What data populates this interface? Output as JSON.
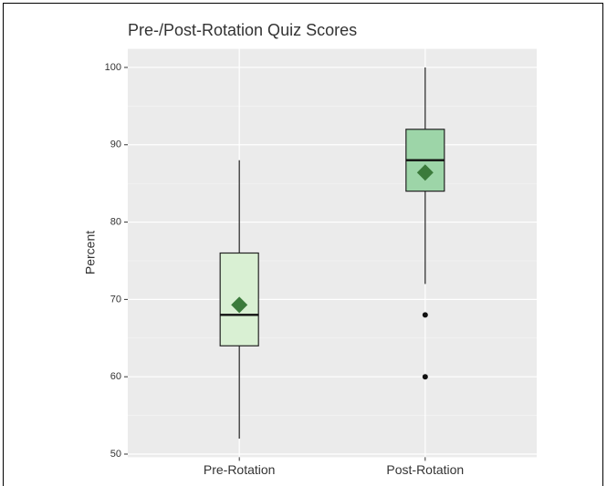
{
  "chart_data": {
    "type": "box",
    "title": "Pre-/Post-Rotation Quiz Scores",
    "y_label": "Percent",
    "categories": [
      "Pre-Rotation",
      "Post-Rotation"
    ],
    "boxes": [
      {
        "min": 52,
        "q1": 64,
        "median": 68,
        "q3": 76,
        "max": 88,
        "mean": 69.3,
        "outliers": [],
        "color": "#d9f0d3"
      },
      {
        "min": 72,
        "q1": 84,
        "median": 88,
        "q3": 92,
        "max": 100,
        "mean": 86.4,
        "outliers": [
          68,
          60
        ],
        "color": "#9dd5a8"
      }
    ],
    "mean_color": "#3b7a3b",
    "ylim": [
      49.6,
      102.4
    ],
    "yticks": [
      50,
      60,
      70,
      80,
      90,
      100
    ],
    "yminor": [
      55,
      65,
      75,
      85,
      95
    ],
    "grid": true
  }
}
